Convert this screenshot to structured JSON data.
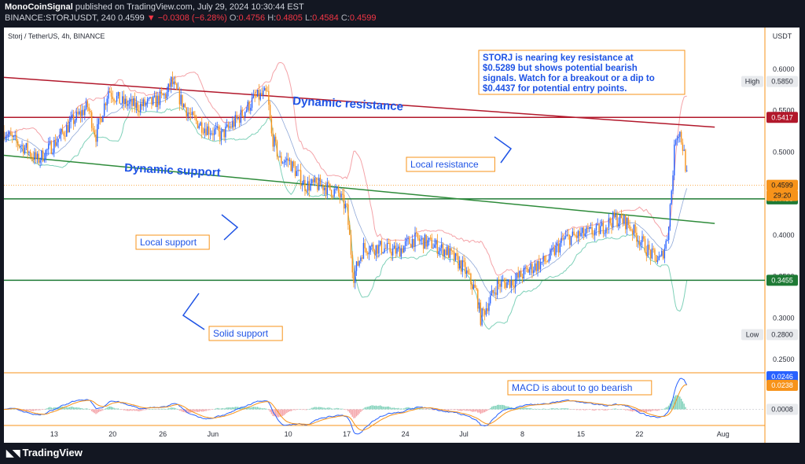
{
  "header": {
    "publisher": "MonoCoinSignal",
    "published_text": "published on TradingView.com, July 29, 2024 10:30:44 EST",
    "symbol_line": "BINANCE:STORJUSDT, 240",
    "last": "0.4599",
    "change_arrow": "▼",
    "change": "−0.0308 (−6.28%)",
    "o_label": "O:",
    "o": "0.4756",
    "h_label": "H:",
    "h": "0.4805",
    "l_label": "L:",
    "l": "0.4584",
    "c_label": "C:",
    "c": "0.4599"
  },
  "footer": {
    "brand": "TradingView",
    "logo_icon": "tradingview-logo-icon"
  },
  "colors": {
    "up": "#2962ff",
    "down": "#f7931a",
    "resistance_line": "#b2182b",
    "support_line": "#2e8b3a",
    "bb_upper": "#f4a3a8",
    "bb_lower": "#7fd1b9",
    "annotation_text": "#1e53e5",
    "annotation_border": "#f7931a"
  },
  "chart_data": [
    {
      "type": "candlestick",
      "title": "Storj / TetherUS, 4h, BINANCE",
      "currency_label": "USDT",
      "yticks": [
        "0.6000",
        "0.5500",
        "0.5000",
        "0.4500",
        "0.4000",
        "0.3500",
        "0.3000",
        "0.2500"
      ],
      "xticks": [
        {
          "label": "13",
          "day": 13
        },
        {
          "label": "20",
          "day": 20
        },
        {
          "label": "26",
          "day": 26
        },
        {
          "label": "Jun",
          "day": 32
        },
        {
          "label": "10",
          "day": 41
        },
        {
          "label": "17",
          "day": 48
        },
        {
          "label": "24",
          "day": 55
        },
        {
          "label": "Jul",
          "day": 62
        },
        {
          "label": "8",
          "day": 69
        },
        {
          "label": "15",
          "day": 76
        },
        {
          "label": "22",
          "day": 83
        },
        {
          "label": "Aug",
          "day": 93
        }
      ],
      "price_path": [
        [
          7,
          0.525
        ],
        [
          8,
          0.515
        ],
        [
          9.5,
          0.505
        ],
        [
          11,
          0.49
        ],
        [
          13,
          0.51
        ],
        [
          15,
          0.535
        ],
        [
          17,
          0.555
        ],
        [
          18,
          0.52
        ],
        [
          19.5,
          0.575
        ],
        [
          21,
          0.56
        ],
        [
          23,
          0.555
        ],
        [
          25,
          0.56
        ],
        [
          26.5,
          0.57
        ],
        [
          27,
          0.585
        ],
        [
          28,
          0.565
        ],
        [
          29.5,
          0.54
        ],
        [
          31,
          0.53
        ],
        [
          33,
          0.52
        ],
        [
          35,
          0.54
        ],
        [
          37,
          0.565
        ],
        [
          38.5,
          0.57
        ],
        [
          39,
          0.52
        ],
        [
          40,
          0.49
        ],
        [
          41,
          0.49
        ],
        [
          43,
          0.46
        ],
        [
          45,
          0.46
        ],
        [
          47,
          0.45
        ],
        [
          48,
          0.43
        ],
        [
          48.8,
          0.35
        ],
        [
          50,
          0.385
        ],
        [
          52,
          0.385
        ],
        [
          54,
          0.38
        ],
        [
          56,
          0.395
        ],
        [
          58,
          0.39
        ],
        [
          60,
          0.38
        ],
        [
          62,
          0.36
        ],
        [
          63.5,
          0.33
        ],
        [
          64,
          0.3
        ],
        [
          66,
          0.34
        ],
        [
          68,
          0.345
        ],
        [
          70,
          0.36
        ],
        [
          72,
          0.37
        ],
        [
          74,
          0.395
        ],
        [
          76,
          0.4
        ],
        [
          78,
          0.405
        ],
        [
          80,
          0.42
        ],
        [
          81.5,
          0.415
        ],
        [
          83,
          0.395
        ],
        [
          84.5,
          0.375
        ],
        [
          85.5,
          0.37
        ],
        [
          86.3,
          0.395
        ],
        [
          86.8,
          0.45
        ],
        [
          87.3,
          0.52
        ],
        [
          87.8,
          0.525
        ],
        [
          88.3,
          0.5
        ],
        [
          88.8,
          0.4599
        ]
      ],
      "levels": [
        {
          "name": "local-resistance",
          "price": 0.5417,
          "label": "0.5417",
          "color": "#b2182b"
        },
        {
          "name": "local-support",
          "price": 0.4436,
          "label": "0.4436",
          "color": "#1e7a35"
        },
        {
          "name": "solid-support",
          "price": 0.3455,
          "label": "0.3455",
          "color": "#1e7a35"
        }
      ],
      "dynamic_resistance": {
        "from": [
          7,
          0.59
        ],
        "to": [
          92,
          0.53
        ]
      },
      "dynamic_support": {
        "from": [
          7,
          0.496
        ],
        "to": [
          92,
          0.414
        ]
      },
      "price_badges": [
        {
          "name": "high-badge",
          "tag": "High",
          "price": 0.585,
          "label": "0.5850"
        },
        {
          "name": "low-badge",
          "tag": "Low",
          "price": 0.28,
          "label": "0.2800"
        }
      ],
      "last_price": {
        "price": 0.4599,
        "label": "0.4599",
        "countdown": "29:20"
      },
      "annotations": [
        {
          "name": "dynamic-resistance-label",
          "text": "Dynamic resistance",
          "style": "big"
        },
        {
          "name": "dynamic-support-label",
          "text": "Dynamic support",
          "style": "big"
        },
        {
          "name": "local-resistance-label",
          "text": "Local resistance",
          "style": "box"
        },
        {
          "name": "local-support-label",
          "text": "Local support",
          "style": "box"
        },
        {
          "name": "solid-support-label",
          "text": "Solid support",
          "style": "box"
        },
        {
          "name": "resistance-note",
          "style": "box",
          "lines": [
            "STORJ is nearing key resistance at",
            "$0.5289 but shows potential bearish",
            "signals. Watch for a breakout or a dip to",
            "$0.4437 for potential entry points."
          ]
        }
      ]
    },
    {
      "type": "macd",
      "badges": [
        {
          "name": "macd-line-badge",
          "label": "0.0246",
          "color": "#2962ff"
        },
        {
          "name": "signal-line-badge",
          "label": "0.0238",
          "color": "#f7931a"
        },
        {
          "name": "histogram-badge",
          "label": "0.0008",
          "color": "#e8eaed"
        }
      ],
      "annotation": "MACD is about to go bearish"
    }
  ]
}
